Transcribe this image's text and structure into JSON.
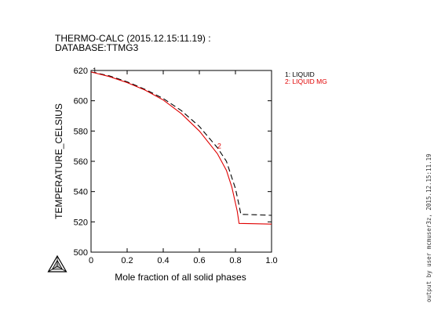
{
  "header": {
    "line1": "THERMO-CALC (2015.12.15:11.19) :",
    "line2": "DATABASE:TTMG3"
  },
  "side_note": "output by user mcmuser3z, 2015.12.15:11.19",
  "chart_data": {
    "type": "line",
    "xlabel": "Mole fraction of all solid phases",
    "ylabel": "TEMPERATURE_CELSIUS",
    "xlim": [
      0,
      1.0
    ],
    "ylim": [
      500,
      620
    ],
    "xticks": [
      "0",
      "0.2",
      "0.4",
      "0.6",
      "0.8",
      "1.0"
    ],
    "xtick_values": [
      0,
      0.2,
      0.4,
      0.6,
      0.8,
      1.0
    ],
    "yticks": [
      "500",
      "520",
      "540",
      "560",
      "580",
      "600",
      "620"
    ],
    "ytick_values": [
      500,
      520,
      540,
      560,
      580,
      600,
      620
    ],
    "grid": false,
    "legend": [
      {
        "label": "1: LIQUID",
        "color": "#000000",
        "style": "dashed"
      },
      {
        "label": "2: LIQUID MG",
        "color": "#e00000",
        "style": "solid"
      }
    ],
    "series": [
      {
        "name": "1: LIQUID",
        "color": "#000000",
        "dash": true,
        "label_mark": "1",
        "label_at": [
          0.005,
          619
        ],
        "x": [
          0,
          0.1,
          0.2,
          0.3,
          0.4,
          0.5,
          0.6,
          0.7,
          0.75,
          0.8,
          0.82,
          0.83,
          0.9,
          1.0
        ],
        "y": [
          619,
          616.5,
          612.5,
          607.5,
          601.5,
          593.5,
          583,
          569,
          560,
          542,
          531,
          525,
          524.7,
          524.3
        ]
      },
      {
        "name": "2: LIQUID MG",
        "color": "#e00000",
        "dash": false,
        "label_mark": "2",
        "label_at": [
          0.695,
          569
        ],
        "x": [
          0,
          0.1,
          0.2,
          0.3,
          0.4,
          0.5,
          0.6,
          0.7,
          0.75,
          0.78,
          0.81,
          0.82,
          0.9,
          1.0
        ],
        "y": [
          619,
          616,
          612,
          607,
          600.5,
          591.5,
          580,
          565,
          554,
          543,
          527,
          519,
          518.8,
          518.5
        ]
      }
    ]
  }
}
